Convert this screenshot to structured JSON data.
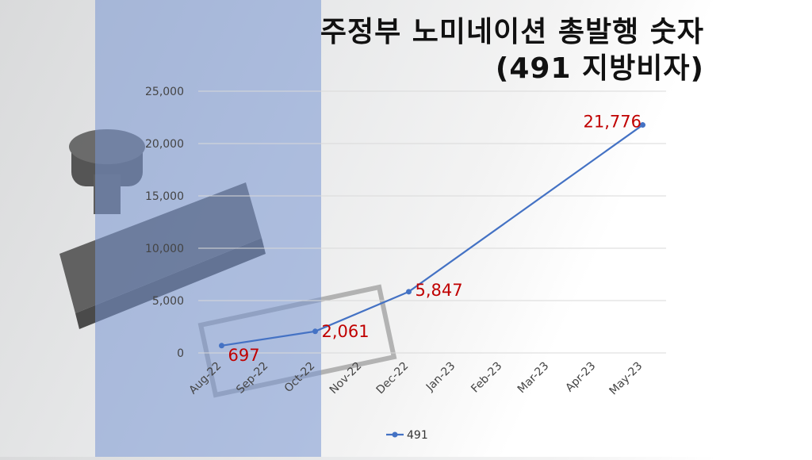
{
  "title_lines": [
    "주정부 노미네이션 총발행 숫자",
    "(491 지방비자)"
  ],
  "chart_data": {
    "type": "line",
    "categories": [
      "Aug-22",
      "Sep-22",
      "Oct-22",
      "Nov-22",
      "Dec-22",
      "Jan-23",
      "Feb-23",
      "Mar-23",
      "Apr-23",
      "May-23"
    ],
    "series": [
      {
        "name": "491",
        "color": "#4472c4",
        "points": [
          {
            "x": "Aug-22",
            "y": 697
          },
          {
            "x": "Oct-22",
            "y": 2061
          },
          {
            "x": "Dec-22",
            "y": 5847
          },
          {
            "x": "May-23",
            "y": 21776
          }
        ]
      }
    ],
    "data_labels": [
      "697",
      "2,061",
      "5,847",
      "21,776"
    ],
    "y_ticks": [
      "0",
      "5,000",
      "10,000",
      "15,000",
      "20,000",
      "25,000"
    ],
    "ylim": [
      0,
      25000
    ],
    "grid": true,
    "legend": {
      "position": "bottom",
      "label": "491"
    }
  }
}
